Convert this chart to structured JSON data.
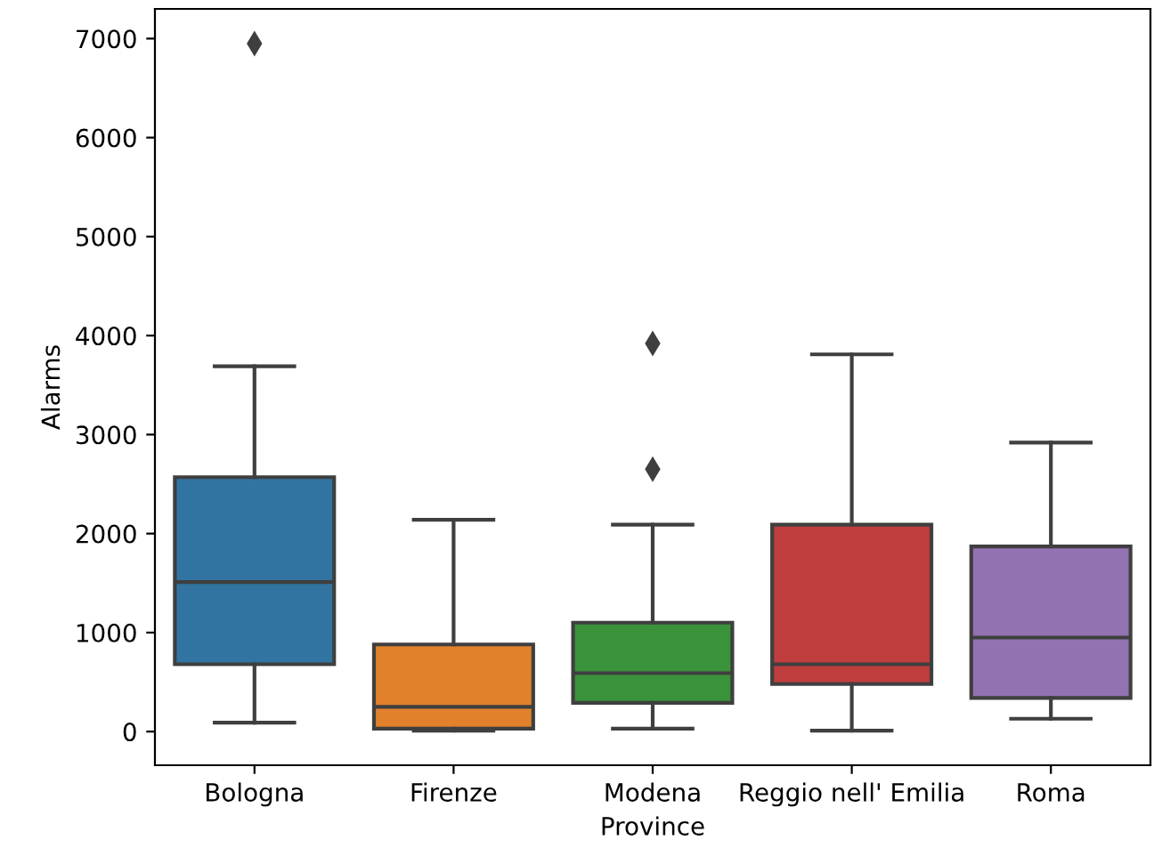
{
  "chart_data": {
    "type": "box",
    "xlabel": "Province",
    "ylabel": "Alarms",
    "categories": [
      "Bologna",
      "Firenze",
      "Modena",
      "Reggio nell' Emilia",
      "Roma"
    ],
    "colors": [
      "#3274a1",
      "#e1812c",
      "#3a923a",
      "#c03d3e",
      "#9372b2"
    ],
    "boxes": [
      {
        "low": 90,
        "q1": 680,
        "median": 1510,
        "q3": 2570,
        "high": 3690,
        "outliers": [
          6950
        ]
      },
      {
        "low": 10,
        "q1": 30,
        "median": 250,
        "q3": 880,
        "high": 2140
      },
      {
        "low": 30,
        "q1": 290,
        "median": 590,
        "q3": 1100,
        "high": 2090,
        "outliers": [
          2650,
          3920
        ]
      },
      {
        "low": 10,
        "q1": 480,
        "median": 680,
        "q3": 2090,
        "high": 3810
      },
      {
        "low": 130,
        "q1": 340,
        "median": 950,
        "q3": 1870,
        "high": 2920
      }
    ],
    "ylim": [
      -340,
      7300
    ],
    "yticks": [
      0,
      1000,
      2000,
      3000,
      4000,
      5000,
      6000,
      7000
    ],
    "grid": false
  }
}
